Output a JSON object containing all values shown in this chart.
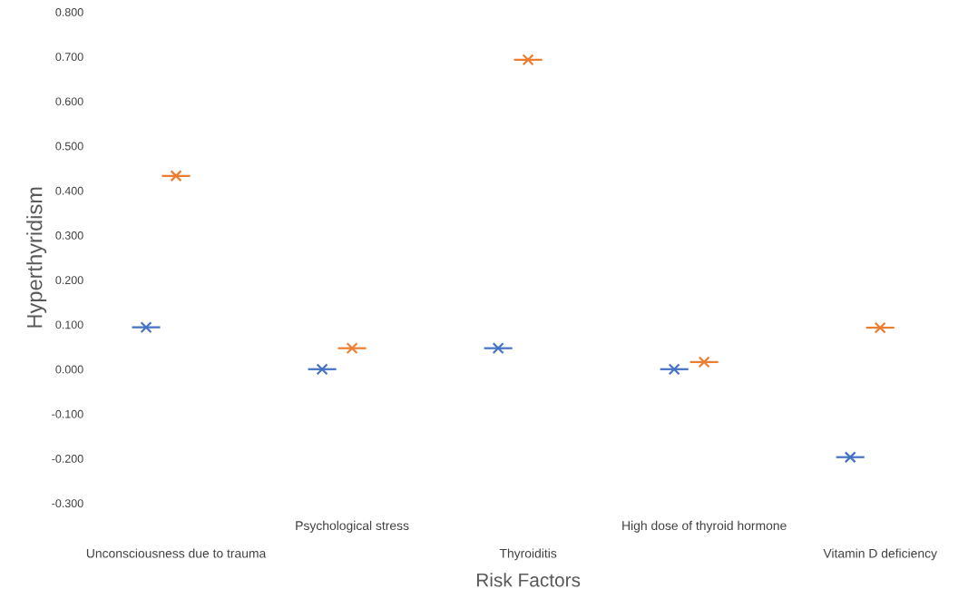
{
  "chart_data": {
    "type": "scatter",
    "xlabel": "Risk Factors",
    "ylabel": "Hyperthyridism",
    "categories": [
      "Unconsciousness due to trauma",
      "Psychological stress",
      "Thyroiditis",
      "High dose of thyroid hormone",
      "Vitamin D deficiency"
    ],
    "series": [
      {
        "color": "#4472c4",
        "values": [
          0.094,
          0.0,
          0.047,
          0.0,
          -0.197
        ]
      },
      {
        "color": "#ed7d31",
        "values": [
          0.433,
          0.047,
          0.693,
          0.016,
          0.093
        ]
      }
    ],
    "marker": "cross",
    "grid": false,
    "legend": false,
    "ylim": [
      -0.3,
      0.8
    ],
    "yticks": [
      {
        "value": -0.3,
        "label": "-0.300"
      },
      {
        "value": -0.2,
        "label": "-0.200"
      },
      {
        "value": -0.1,
        "label": "-0.100"
      },
      {
        "value": 0,
        "label": "0.000"
      },
      {
        "value": 0.1,
        "label": "0.100"
      },
      {
        "value": 0.2,
        "label": "0.200"
      },
      {
        "value": 0.3,
        "label": "0.300"
      },
      {
        "value": 0.4,
        "label": "0.400"
      },
      {
        "value": 0.5,
        "label": "0.500"
      },
      {
        "value": 0.6,
        "label": "0.600"
      },
      {
        "value": 0.7,
        "label": "0.700"
      },
      {
        "value": 0.8,
        "label": "0.800"
      }
    ]
  }
}
